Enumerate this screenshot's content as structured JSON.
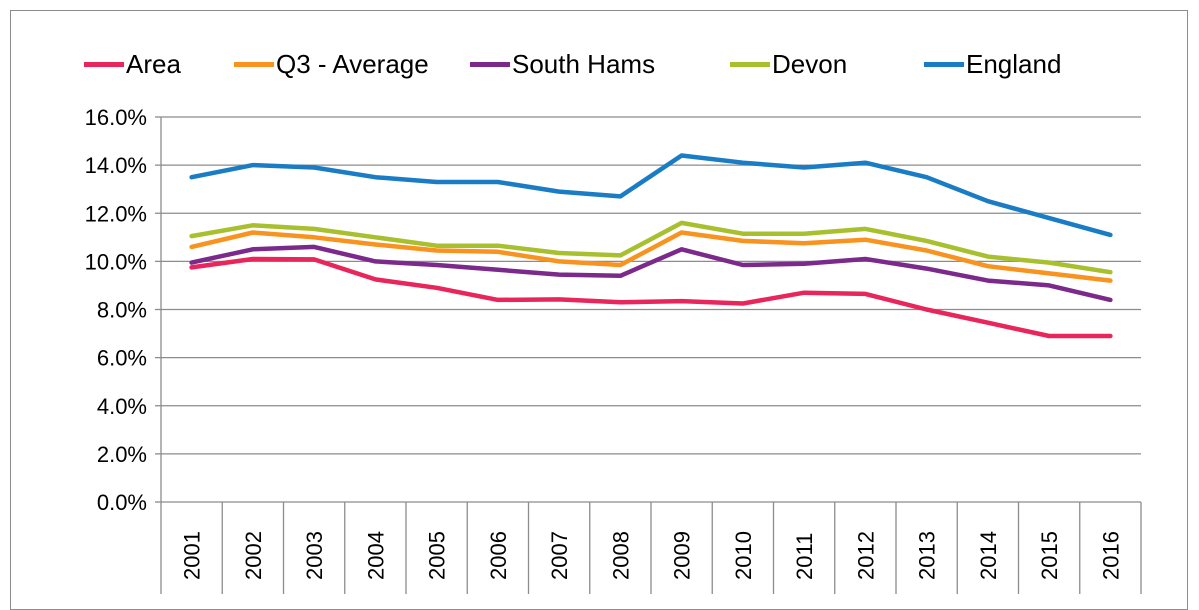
{
  "chart_data": {
    "type": "line",
    "title": "",
    "xlabel": "",
    "ylabel": "",
    "ylim": [
      0,
      16
    ],
    "y_tick_labels": [
      "0.0%",
      "2.0%",
      "4.0%",
      "6.0%",
      "8.0%",
      "10.0%",
      "12.0%",
      "14.0%",
      "16.0%"
    ],
    "y_ticks": [
      0,
      2,
      4,
      6,
      8,
      10,
      12,
      14,
      16
    ],
    "categories": [
      "2001",
      "2002",
      "2003",
      "2004",
      "2005",
      "2006",
      "2007",
      "2008",
      "2009",
      "2010",
      "2011",
      "2012",
      "2013",
      "2014",
      "2015",
      "2016"
    ],
    "grid": "horizontal",
    "legend_position": "top",
    "series": [
      {
        "name": "Area",
        "color": "#e8265b",
        "values": [
          9.75,
          10.1,
          10.08,
          9.25,
          8.9,
          8.4,
          8.42,
          8.3,
          8.35,
          8.25,
          8.7,
          8.65,
          8.0,
          7.45,
          6.9,
          6.9
        ]
      },
      {
        "name": "Q3 - Average",
        "color": "#f7931e",
        "values": [
          10.6,
          11.2,
          11.0,
          10.7,
          10.45,
          10.4,
          10.0,
          9.85,
          11.2,
          10.85,
          10.75,
          10.9,
          10.45,
          9.8,
          9.5,
          9.2
        ]
      },
      {
        "name": "South Hams",
        "color": "#7b2a8c",
        "values": [
          9.95,
          10.5,
          10.6,
          10.0,
          9.85,
          9.65,
          9.45,
          9.4,
          10.5,
          9.85,
          9.9,
          10.1,
          9.7,
          9.2,
          9.0,
          8.4
        ]
      },
      {
        "name": "Devon",
        "color": "#a8c02e",
        "values": [
          11.05,
          11.5,
          11.35,
          11.0,
          10.65,
          10.65,
          10.35,
          10.25,
          11.6,
          11.15,
          11.15,
          11.35,
          10.85,
          10.2,
          9.95,
          9.55
        ]
      },
      {
        "name": "England",
        "color": "#1a7cc4",
        "values": [
          13.5,
          14.0,
          13.9,
          13.5,
          13.3,
          13.3,
          12.9,
          12.7,
          14.4,
          14.1,
          13.9,
          14.1,
          13.5,
          12.5,
          11.8,
          11.1
        ]
      }
    ]
  }
}
